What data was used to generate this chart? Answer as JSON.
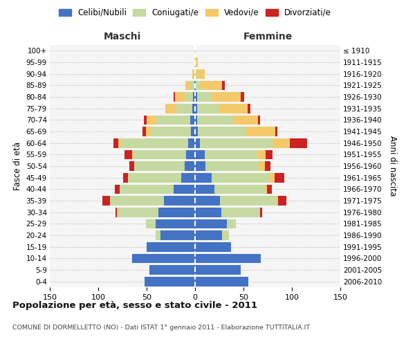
{
  "age_groups": [
    "0-4",
    "5-9",
    "10-14",
    "15-19",
    "20-24",
    "25-29",
    "30-34",
    "35-39",
    "40-44",
    "45-49",
    "50-54",
    "55-59",
    "60-64",
    "65-69",
    "70-74",
    "75-79",
    "80-84",
    "85-89",
    "90-94",
    "95-99",
    "100+"
  ],
  "birth_years": [
    "2006-2010",
    "2001-2005",
    "1996-2000",
    "1991-1995",
    "1986-1990",
    "1981-1985",
    "1976-1980",
    "1971-1975",
    "1966-1970",
    "1961-1965",
    "1956-1960",
    "1951-1955",
    "1946-1950",
    "1941-1945",
    "1936-1940",
    "1931-1935",
    "1926-1930",
    "1921-1925",
    "1916-1920",
    "1911-1915",
    "≤ 1910"
  ],
  "colors": {
    "celibi": "#4472C4",
    "coniugati": "#c5d9a0",
    "vedovi": "#f5c96a",
    "divorziati": "#cc2222"
  },
  "maschi": {
    "celibi": [
      52,
      47,
      65,
      50,
      36,
      41,
      38,
      32,
      22,
      14,
      11,
      9,
      7,
      4,
      5,
      3,
      2,
      1,
      0,
      0,
      0
    ],
    "coniugati": [
      0,
      0,
      0,
      0,
      5,
      10,
      43,
      56,
      56,
      55,
      52,
      55,
      70,
      42,
      35,
      16,
      9,
      4,
      1,
      1,
      0
    ],
    "vedovi": [
      0,
      0,
      0,
      0,
      0,
      0,
      0,
      0,
      0,
      0,
      0,
      1,
      2,
      5,
      10,
      12,
      10,
      5,
      2,
      0,
      0
    ],
    "divorziati": [
      0,
      0,
      0,
      0,
      0,
      0,
      1,
      8,
      5,
      5,
      5,
      8,
      5,
      3,
      3,
      0,
      1,
      0,
      0,
      0,
      0
    ]
  },
  "femmine": {
    "celibi": [
      55,
      47,
      68,
      37,
      28,
      33,
      27,
      26,
      20,
      17,
      11,
      10,
      5,
      3,
      2,
      2,
      2,
      1,
      0,
      0,
      0
    ],
    "coniugati": [
      0,
      0,
      0,
      0,
      7,
      9,
      40,
      58,
      52,
      60,
      55,
      55,
      75,
      50,
      38,
      22,
      15,
      5,
      2,
      0,
      0
    ],
    "vedovi": [
      0,
      0,
      0,
      0,
      0,
      0,
      0,
      2,
      2,
      5,
      6,
      8,
      18,
      30,
      25,
      30,
      30,
      22,
      8,
      3,
      1
    ],
    "divorziati": [
      0,
      0,
      0,
      0,
      0,
      0,
      2,
      8,
      5,
      10,
      6,
      7,
      18,
      2,
      2,
      3,
      4,
      3,
      0,
      0,
      0
    ]
  },
  "xlim": 150,
  "title": "Popolazione per età, sesso e stato civile - 2011",
  "subtitle": "COMUNE DI DORMELLETTO (NO) - Dati ISTAT 1° gennaio 2011 - Elaborazione TUTTITALIA.IT",
  "ylabel_left": "Fasce di età",
  "ylabel_right": "Anni di nascita",
  "xlabel_left": "Maschi",
  "xlabel_right": "Femmine",
  "bg_color": "#f5f5f5",
  "grid_color": "#cccccc"
}
